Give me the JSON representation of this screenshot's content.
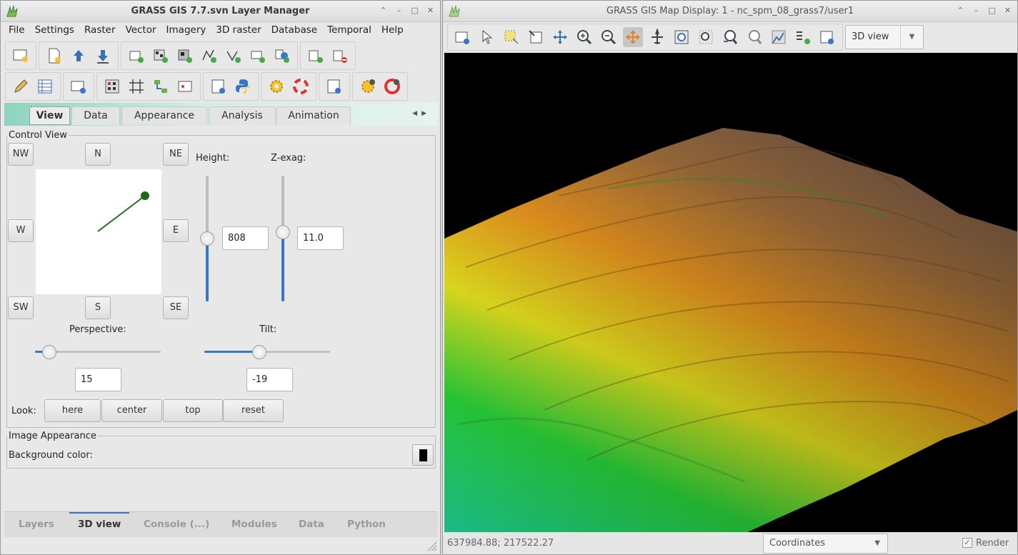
{
  "layer_manager": {
    "title": "GRASS GIS 7.7.svn Layer Manager",
    "menu": [
      "File",
      "Settings",
      "Raster",
      "Vector",
      "Imagery",
      "3D raster",
      "Database",
      "Temporal",
      "Help"
    ],
    "tabs": [
      "View",
      "Data",
      "Appearance",
      "Analysis",
      "Animation"
    ],
    "control_view": {
      "legend": "Control View",
      "directions": {
        "nw": "NW",
        "n": "N",
        "ne": "NE",
        "w": "W",
        "e": "E",
        "sw": "SW",
        "s": "S",
        "se": "SE"
      },
      "height_label": "Height:",
      "height_value": "808",
      "zexag_label": "Z-exag:",
      "zexag_value": "11.0",
      "perspective_label": "Perspective:",
      "perspective_value": "15",
      "tilt_label": "Tilt:",
      "tilt_value": "-19",
      "look_label": "Look:",
      "look_buttons": [
        "here",
        "center",
        "top",
        "reset"
      ]
    },
    "image_appearance": {
      "legend": "Image Appearance",
      "bg_label": "Background color:",
      "bg_color": "#000000"
    },
    "bottom_tabs": [
      "Layers",
      "3D view",
      "Console (...)",
      "Modules",
      "Data",
      "Python"
    ],
    "active_bottom_tab": "3D view"
  },
  "map_display": {
    "title": "GRASS GIS Map Display: 1 - nc_spm_08_grass7/user1",
    "view_mode": "3D view",
    "coordinates": "637984.88; 217522.27",
    "status_mode": "Coordinates",
    "render_label": "Render"
  },
  "colors": {
    "accent": "#3a76c8",
    "tab_gradient": "#8ed3bf",
    "map_bg": "#000000"
  }
}
